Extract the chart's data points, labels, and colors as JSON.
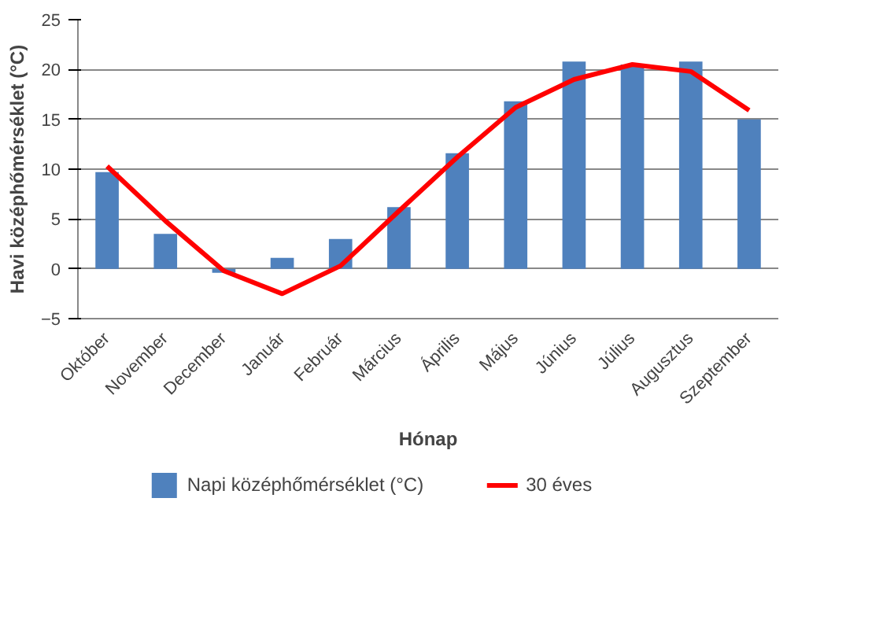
{
  "chart_data": {
    "type": "bar",
    "xlabel": "Hónap",
    "ylabel": "Havi középhőmérséklet (°C)",
    "categories": [
      "Október",
      "November",
      "December",
      "Január",
      "Február",
      "Március",
      "Április",
      "Május",
      "Június",
      "Július",
      "Augusztus",
      "Szeptember"
    ],
    "series": [
      {
        "name": "Napi középhőmérséklet (°C)",
        "color": "#4f81bd",
        "values": [
          9.7,
          3.5,
          -0.4,
          1.1,
          3.0,
          6.2,
          11.6,
          16.8,
          20.8,
          20.5,
          20.8,
          15.0
        ]
      },
      {
        "name": "30 éves",
        "type": "line",
        "color": "#ff0000",
        "values": [
          10.3,
          4.8,
          -0.2,
          -2.5,
          0.3,
          5.8,
          11.2,
          16.2,
          19.0,
          20.5,
          19.8,
          15.9
        ]
      }
    ],
    "ylim": [
      -5,
      25
    ],
    "yticks": [
      -5,
      0,
      5,
      10,
      15,
      20,
      25
    ],
    "grid": "y",
    "legend": "bottom",
    "marker": "none",
    "line_style": "solid"
  }
}
